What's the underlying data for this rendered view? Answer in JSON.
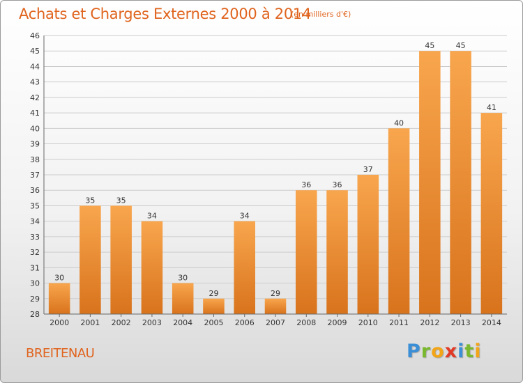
{
  "header": {
    "title": "Achats et Charges Externes 2000 à 2014",
    "subtitle": "(en milliers d'€)"
  },
  "footer": {
    "place": "BREITENAU",
    "logo_letters": [
      {
        "char": "P",
        "color": "#3a8fd6"
      },
      {
        "char": "r",
        "color": "#7ab82e"
      },
      {
        "char": "o",
        "color": "#f2a516"
      },
      {
        "char": "x",
        "color": "#e23a26"
      },
      {
        "char": "i",
        "color": "#3a8fd6"
      },
      {
        "char": "t",
        "color": "#7ab82e"
      },
      {
        "char": "i",
        "color": "#f2a516"
      }
    ]
  },
  "colors": {
    "bar_light": "#f8a64e",
    "bar_dark": "#d8731c",
    "accent": "#e0641e",
    "grid": "#cccccc"
  },
  "chart_data": {
    "type": "bar",
    "title": "Achats et Charges Externes 2000 à 2014",
    "subtitle": "(en milliers d'€)",
    "categories": [
      "2000",
      "2001",
      "2002",
      "2003",
      "2004",
      "2005",
      "2006",
      "2007",
      "2008",
      "2009",
      "2010",
      "2011",
      "2012",
      "2013",
      "2014"
    ],
    "values": [
      30,
      35,
      35,
      34,
      30,
      29,
      34,
      29,
      36,
      36,
      37,
      40,
      45,
      45,
      41
    ],
    "xlabel": "",
    "ylabel": "",
    "ylim": [
      28,
      46
    ],
    "yticks": [
      28,
      29,
      30,
      31,
      32,
      33,
      34,
      35,
      36,
      37,
      38,
      39,
      40,
      41,
      42,
      43,
      44,
      45,
      46
    ],
    "grid": true,
    "legend": "none"
  }
}
